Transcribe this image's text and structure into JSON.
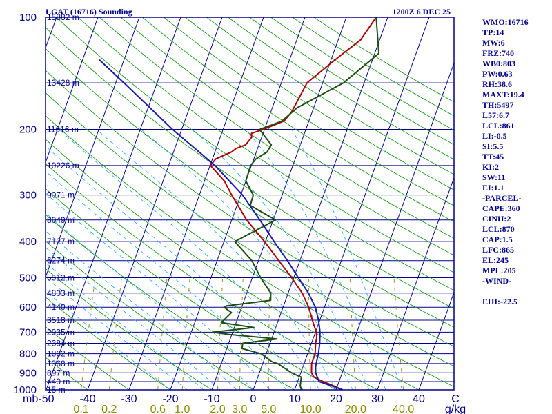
{
  "chart_data": {
    "type": "skew-t sounding",
    "title_left": "LGAT (16716) Sounding",
    "title_right": "1200Z  6 DEC 25",
    "pressure_axis": {
      "unit_label": "mb",
      "range": [
        1000,
        100
      ],
      "log_scale": true,
      "ticks": [
        {
          "p": 100,
          "label": "100"
        },
        {
          "p": 200,
          "label": "200"
        },
        {
          "p": 300,
          "label": "300"
        },
        {
          "p": 400,
          "label": "400"
        },
        {
          "p": 500,
          "label": "500"
        },
        {
          "p": 600,
          "label": "600"
        },
        {
          "p": 700,
          "label": "700"
        },
        {
          "p": 800,
          "label": "800"
        },
        {
          "p": 900,
          "label": "900"
        },
        {
          "p": 1000,
          "label": "1000"
        }
      ]
    },
    "height_levels": [
      {
        "p": 100,
        "label": "15882 m"
      },
      {
        "p": 150,
        "label": "13428 m"
      },
      {
        "p": 200,
        "label": "11616 m"
      },
      {
        "p": 250,
        "label": "10226 m"
      },
      {
        "p": 300,
        "label": "9071 m"
      },
      {
        "p": 350,
        "label": "8049 m"
      },
      {
        "p": 400,
        "label": "7127 m"
      },
      {
        "p": 450,
        "label": "6274 m"
      },
      {
        "p": 500,
        "label": "5512 m"
      },
      {
        "p": 550,
        "label": "4803 m"
      },
      {
        "p": 600,
        "label": "4140 m"
      },
      {
        "p": 650,
        "label": "3518 m"
      },
      {
        "p": 700,
        "label": "2935 m"
      },
      {
        "p": 750,
        "label": "2384 m"
      },
      {
        "p": 800,
        "label": "1862 m"
      },
      {
        "p": 850,
        "label": "1368 m"
      },
      {
        "p": 900,
        "label": "897 m"
      },
      {
        "p": 950,
        "label": "440 m"
      },
      {
        "p": 1000,
        "label": "15 m"
      }
    ],
    "temperature_axis": {
      "ticks": [
        {
          "t": -50,
          "label": "-50"
        },
        {
          "t": -40,
          "label": "-40"
        },
        {
          "t": -30,
          "label": "-30"
        },
        {
          "t": -20,
          "label": "-20"
        },
        {
          "t": -10,
          "label": "-10"
        },
        {
          "t": 0,
          "label": "0"
        },
        {
          "t": 10,
          "label": "10"
        },
        {
          "t": 20,
          "label": "20"
        },
        {
          "t": 30,
          "label": "30"
        },
        {
          "t": 40,
          "label": "40"
        }
      ],
      "unit_label": "C"
    },
    "mixing_ratio_axis": {
      "unit_label": "g/kg",
      "ticks": [
        {
          "w": 0.1,
          "label": "0.1"
        },
        {
          "w": 0.2,
          "label": "0.2"
        },
        {
          "w": 0.6,
          "label": "0.6"
        },
        {
          "w": 1.0,
          "label": "1.0"
        },
        {
          "w": 2.0,
          "label": "2.0"
        },
        {
          "w": 3.0,
          "label": "3.0"
        },
        {
          "w": 5.0,
          "label": "5.0"
        },
        {
          "w": 10.0,
          "label": "10.0"
        },
        {
          "w": 20.0,
          "label": "20.0"
        },
        {
          "w": 40.0,
          "label": "40.0"
        }
      ]
    },
    "series": [
      {
        "color": "#b00000",
        "points": [
          {
            "p": 1000,
            "t": 21.6
          },
          {
            "p": 975,
            "t": 19.0
          },
          {
            "p": 950,
            "t": 16.2
          },
          {
            "p": 925,
            "t": 13.6
          },
          {
            "p": 900,
            "t": 12.6
          },
          {
            "p": 850,
            "t": 11.8
          },
          {
            "p": 800,
            "t": 11.8
          },
          {
            "p": 750,
            "t": 11.0
          },
          {
            "p": 725,
            "t": 10.8
          },
          {
            "p": 700,
            "t": 10.2
          },
          {
            "p": 650,
            "t": 8.2
          },
          {
            "p": 600,
            "t": 6.2
          },
          {
            "p": 550,
            "t": 3.4
          },
          {
            "p": 500,
            "t": -0.5
          },
          {
            "p": 450,
            "t": -5.1
          },
          {
            "p": 400,
            "t": -10.2
          },
          {
            "p": 350,
            "t": -16.4
          },
          {
            "p": 300,
            "t": -22.2
          },
          {
            "p": 275,
            "t": -25.2
          },
          {
            "p": 250,
            "t": -29.9
          },
          {
            "p": 240,
            "t": -29.2
          },
          {
            "p": 230,
            "t": -26.0
          },
          {
            "p": 225,
            "t": -25.2
          },
          {
            "p": 220,
            "t": -23.2
          },
          {
            "p": 210,
            "t": -22.4
          },
          {
            "p": 205,
            "t": -22.8
          },
          {
            "p": 200,
            "t": -20.3
          },
          {
            "p": 190,
            "t": -16.0
          },
          {
            "p": 180,
            "t": -15.0
          },
          {
            "p": 170,
            "t": -14.6
          },
          {
            "p": 150,
            "t": -13.8
          },
          {
            "p": 130,
            "t": -9.0
          },
          {
            "p": 115,
            "t": -4.6
          },
          {
            "p": 100,
            "t": -2.8
          }
        ]
      },
      {
        "color": "#1e4d12",
        "points": [
          {
            "p": 1000,
            "t": 11.6
          },
          {
            "p": 975,
            "t": 11.0
          },
          {
            "p": 925,
            "t": 10.5
          },
          {
            "p": 900,
            "t": 7.8
          },
          {
            "p": 850,
            "t": 3.6
          },
          {
            "p": 840,
            "t": 2.0
          },
          {
            "p": 800,
            "t": -1.2
          },
          {
            "p": 775,
            "t": -6.3
          },
          {
            "p": 750,
            "t": -6.6
          },
          {
            "p": 730,
            "t": 1.3
          },
          {
            "p": 710,
            "t": -10.6
          },
          {
            "p": 700,
            "t": -14.9
          },
          {
            "p": 680,
            "t": -5.3
          },
          {
            "p": 660,
            "t": -13.6
          },
          {
            "p": 650,
            "t": -13.2
          },
          {
            "p": 620,
            "t": -12.0
          },
          {
            "p": 600,
            "t": -14.3
          },
          {
            "p": 595,
            "t": -13.8
          },
          {
            "p": 575,
            "t": -3.6
          },
          {
            "p": 550,
            "t": -4.2
          },
          {
            "p": 500,
            "t": -8.0
          },
          {
            "p": 450,
            "t": -11.6
          },
          {
            "p": 400,
            "t": -17.4
          },
          {
            "p": 350,
            "t": -9.4
          },
          {
            "p": 320,
            "t": -16.8
          },
          {
            "p": 300,
            "t": -17.0
          },
          {
            "p": 275,
            "t": -20.0
          },
          {
            "p": 250,
            "t": -20.2
          },
          {
            "p": 240,
            "t": -19.5
          },
          {
            "p": 230,
            "t": -17.4
          },
          {
            "p": 220,
            "t": -17.0
          },
          {
            "p": 200,
            "t": -21.2
          },
          {
            "p": 190,
            "t": -16.5
          },
          {
            "p": 175,
            "t": -14.0
          },
          {
            "p": 150,
            "t": -5.0
          },
          {
            "p": 125,
            "t": 1.0
          },
          {
            "p": 100,
            "t": -2.8
          }
        ]
      },
      {
        "color": "#1a1aaa",
        "points": [
          {
            "p": 1000,
            "t": 21.6
          },
          {
            "p": 975,
            "t": 18.5
          },
          {
            "p": 950,
            "t": 15.2
          },
          {
            "p": 925,
            "t": 14.4
          },
          {
            "p": 900,
            "t": 13.6
          },
          {
            "p": 870,
            "t": 13.1
          },
          {
            "p": 850,
            "t": 12.9
          },
          {
            "p": 800,
            "t": 12.6
          },
          {
            "p": 750,
            "t": 12.0
          },
          {
            "p": 700,
            "t": 11.1
          },
          {
            "p": 650,
            "t": 9.7
          },
          {
            "p": 600,
            "t": 7.8
          },
          {
            "p": 550,
            "t": 4.9
          },
          {
            "p": 500,
            "t": 1.1
          },
          {
            "p": 450,
            "t": -3.0
          },
          {
            "p": 400,
            "t": -7.9
          },
          {
            "p": 350,
            "t": -13.2
          },
          {
            "p": 300,
            "t": -19.6
          },
          {
            "p": 250,
            "t": -28.8
          },
          {
            "p": 200,
            "t": -42.2
          },
          {
            "p": 150,
            "t": -58.0
          },
          {
            "p": 130,
            "t": -66.0
          }
        ]
      }
    ],
    "indices": [
      "WMO:16716",
      "TP:14",
      "MW:6",
      "FRZ:740",
      "WB0:803",
      "PW:0.63",
      "RH:38.6",
      "MAXT:19.4",
      "TH:5497",
      "L57:6.7",
      "LCL:861",
      "LI:-0.5",
      "SI:5.5",
      "TT:45",
      "KI:2",
      "SW:11",
      "EI:1.1",
      "-PARCEL-",
      "CAPE:360",
      "CINH:2",
      "LCL:870",
      "CAP:1.5",
      "LFC:865",
      "EL:245",
      "MPL:205",
      "-WIND-",
      "",
      "EHI:-22.5"
    ],
    "grid": true,
    "colors": {
      "frame": "#00008b",
      "isotherm": "#00008b",
      "dry_adiabat": "#1a9a1a",
      "moist_adiabat": "#33aaff",
      "mixing_ratio": "#8b8b00"
    }
  }
}
